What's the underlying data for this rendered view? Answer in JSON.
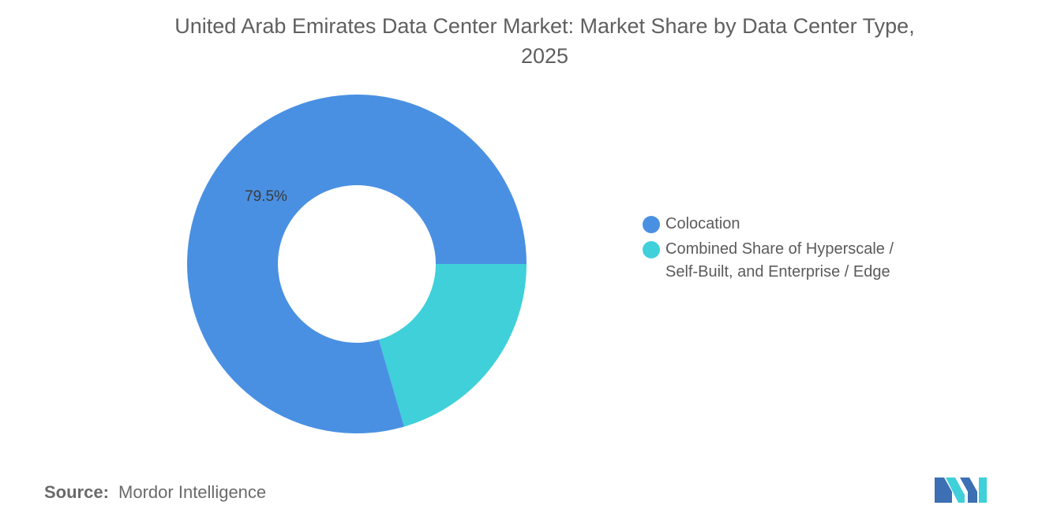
{
  "title_line1": "United Arab Emirates Data Center Market: Market Share by Data Center Type,",
  "title_line2": "2025",
  "chart_data": {
    "type": "pie",
    "style": "donut",
    "title": "United Arab Emirates Data Center Market: Market Share by Data Center Type, 2025",
    "categories": [
      "Colocation",
      "Combined Share of Hyperscale / Self-Built, and Enterprise / Edge"
    ],
    "values": [
      79.5,
      20.5
    ],
    "unit": "%",
    "data_labels": [
      "79.5%",
      ""
    ],
    "colors": [
      "#4a90e2",
      "#3fd0da"
    ],
    "legend_position": "right"
  },
  "legend": [
    {
      "label_line1": "Colocation",
      "label_line2": "",
      "color": "#4a90e2"
    },
    {
      "label_line1": "Combined Share of Hyperscale /",
      "label_line2": "Self-Built, and Enterprise / Edge",
      "color": "#3fd0da"
    }
  ],
  "source": {
    "key": "Source:",
    "value": "Mordor Intelligence"
  },
  "logo": {
    "icon": "mordor-intelligence-logo",
    "color": "#3c6fb4",
    "accent": "#3fd0da"
  }
}
